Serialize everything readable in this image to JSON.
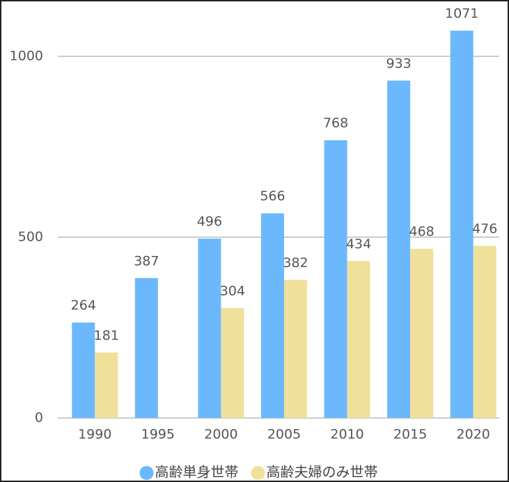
{
  "chart_data": {
    "type": "bar",
    "categories": [
      "1990",
      "1995",
      "2000",
      "2005",
      "2010",
      "2015",
      "2020"
    ],
    "series": [
      {
        "name": "高齢単身世帯",
        "color": "#6cb8fc",
        "values": [
          264,
          387,
          496,
          566,
          768,
          933,
          1071
        ]
      },
      {
        "name": "高齢夫婦のみ世帯",
        "color": "#efe09a",
        "values": [
          181,
          null,
          304,
          382,
          434,
          468,
          476
        ]
      }
    ],
    "ylim": [
      0,
      1150
    ],
    "yticks": [
      0,
      500,
      1000
    ],
    "grid": true,
    "legend": "bottom"
  }
}
